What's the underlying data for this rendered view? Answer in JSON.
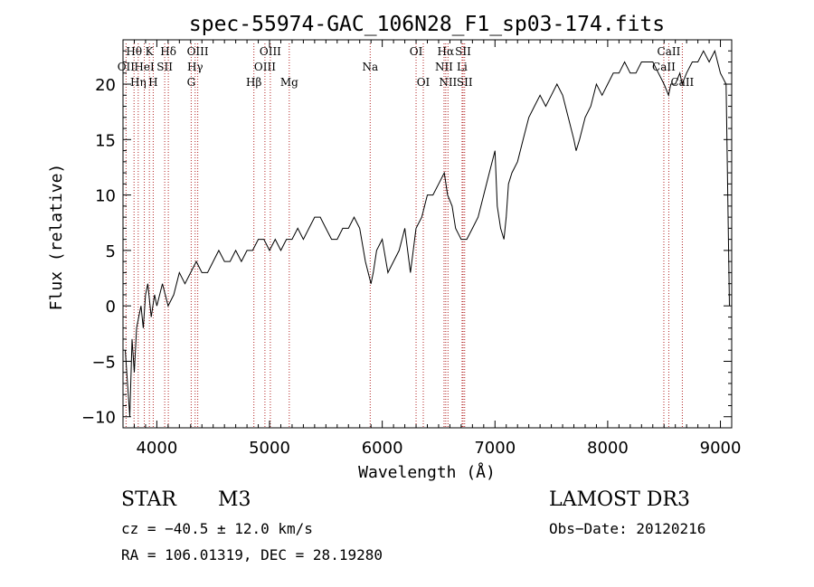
{
  "chart_data": {
    "type": "line",
    "title": "spec-55974-GAC_106N28_F1_sp03-174.fits",
    "xlabel": "Wavelength (Å)",
    "ylabel": "Flux (relative)",
    "xlim": [
      3700,
      9100
    ],
    "ylim": [
      -11,
      24
    ],
    "xticks": [
      4000,
      5000,
      6000,
      7000,
      8000,
      9000
    ],
    "yticks": [
      -10,
      -5,
      0,
      5,
      10,
      15,
      20
    ],
    "grid": false,
    "series": [
      {
        "name": "flux",
        "x": [
          3720,
          3740,
          3760,
          3780,
          3800,
          3820,
          3840,
          3860,
          3880,
          3900,
          3920,
          3950,
          3980,
          4000,
          4050,
          4100,
          4150,
          4200,
          4250,
          4300,
          4350,
          4400,
          4450,
          4500,
          4550,
          4600,
          4650,
          4700,
          4750,
          4800,
          4850,
          4900,
          4950,
          5000,
          5050,
          5100,
          5150,
          5200,
          5250,
          5300,
          5350,
          5400,
          5450,
          5500,
          5550,
          5600,
          5650,
          5700,
          5750,
          5800,
          5850,
          5900,
          5920,
          5950,
          6000,
          6050,
          6100,
          6150,
          6200,
          6250,
          6300,
          6350,
          6400,
          6450,
          6500,
          6550,
          6580,
          6620,
          6650,
          6700,
          6750,
          6800,
          6850,
          6900,
          6950,
          7000,
          7020,
          7050,
          7080,
          7100,
          7120,
          7150,
          7200,
          7250,
          7300,
          7350,
          7400,
          7450,
          7500,
          7550,
          7600,
          7650,
          7700,
          7720,
          7750,
          7800,
          7850,
          7900,
          7950,
          8000,
          8050,
          8100,
          8150,
          8200,
          8250,
          8300,
          8350,
          8400,
          8450,
          8500,
          8540,
          8560,
          8600,
          8640,
          8660,
          8700,
          8750,
          8800,
          8850,
          8900,
          8950,
          9000,
          9050,
          9080
        ],
        "values": [
          -4,
          -7,
          -10,
          -3,
          -6,
          -2,
          -1,
          0,
          -2,
          1,
          2,
          -1,
          1,
          0,
          2,
          0,
          1,
          3,
          2,
          3,
          4,
          3,
          3,
          4,
          5,
          4,
          4,
          5,
          4,
          5,
          5,
          6,
          6,
          5,
          6,
          5,
          6,
          6,
          7,
          6,
          7,
          8,
          8,
          7,
          6,
          6,
          7,
          7,
          8,
          7,
          4,
          2,
          3,
          5,
          6,
          3,
          4,
          5,
          7,
          3,
          7,
          8,
          10,
          10,
          11,
          12,
          10,
          9,
          7,
          6,
          6,
          7,
          8,
          10,
          12,
          14,
          9,
          7,
          6,
          8,
          11,
          12,
          13,
          15,
          17,
          18,
          19,
          18,
          19,
          20,
          19,
          17,
          15,
          14,
          15,
          17,
          18,
          20,
          19,
          20,
          21,
          21,
          22,
          21,
          21,
          22,
          22,
          22,
          21,
          20,
          19,
          20,
          20,
          21,
          20,
          21,
          22,
          22,
          23,
          22,
          23,
          21,
          20,
          0
        ]
      }
    ],
    "lines": [
      {
        "label": "Hθ",
        "x": 3798,
        "row": 1
      },
      {
        "label": "OII",
        "x": 3727,
        "row": 2
      },
      {
        "label": "Hη",
        "x": 3835,
        "row": 3
      },
      {
        "label": "K",
        "x": 3934,
        "row": 1
      },
      {
        "label": "HeI",
        "x": 3889,
        "row": 2
      },
      {
        "label": "H",
        "x": 3968,
        "row": 3
      },
      {
        "label": "Hδ",
        "x": 4102,
        "row": 1
      },
      {
        "label": "SII",
        "x": 4070,
        "row": 2
      },
      {
        "label": "OIII",
        "x": 4363,
        "row": 1
      },
      {
        "label": "Hγ",
        "x": 4340,
        "row": 2
      },
      {
        "label": "G",
        "x": 4305,
        "row": 3
      },
      {
        "label": "OIII",
        "x": 5007,
        "row": 1
      },
      {
        "label": "OIII",
        "x": 4959,
        "row": 2
      },
      {
        "label": "Hβ",
        "x": 4861,
        "row": 3
      },
      {
        "label": "Mg",
        "x": 5175,
        "row": 3
      },
      {
        "label": "Na",
        "x": 5893,
        "row": 2
      },
      {
        "label": "OI",
        "x": 6300,
        "row": 1
      },
      {
        "label": "OI",
        "x": 6364,
        "row": 3
      },
      {
        "label": "Hα",
        "x": 6563,
        "row": 1
      },
      {
        "label": "SII",
        "x": 6717,
        "row": 1
      },
      {
        "label": "NII",
        "x": 6548,
        "row": 2
      },
      {
        "label": "Li",
        "x": 6708,
        "row": 2
      },
      {
        "label": "NII",
        "x": 6583,
        "row": 3
      },
      {
        "label": "SII",
        "x": 6731,
        "row": 3
      },
      {
        "label": "CaII",
        "x": 8542,
        "row": 1
      },
      {
        "label": "CaII",
        "x": 8498,
        "row": 2
      },
      {
        "label": "CaII",
        "x": 8662,
        "row": 3
      }
    ]
  },
  "info": {
    "object_type": "STAR",
    "subclass": "M3",
    "survey": "LAMOST DR3",
    "cz": "cz = −40.5 ± 12.0 km/s",
    "obs_date": "Obs−Date: 20120216",
    "coords": "RA = 106.01319, DEC =  28.19280"
  }
}
